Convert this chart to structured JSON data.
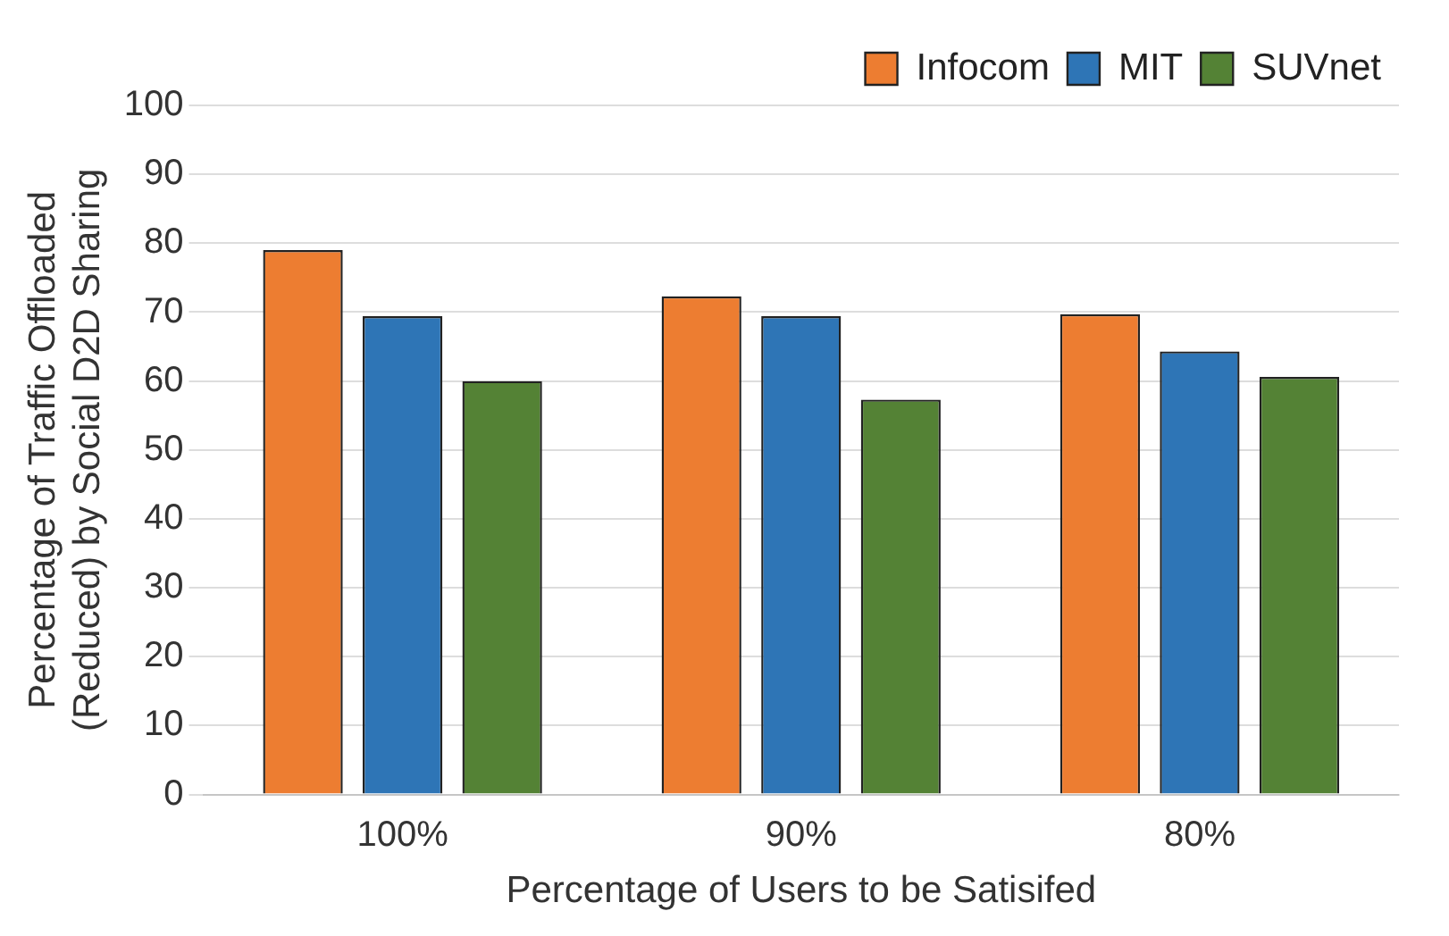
{
  "chart_data": {
    "type": "bar",
    "xlabel": "Percentage of Users to be Satisifed",
    "ylabel": "Percentage of Traffic Offloaded\n(Reduced) by Social D2D Sharing",
    "categories": [
      "100%",
      "90%",
      "80%"
    ],
    "series": [
      {
        "name": "Infocom",
        "color": "#ed7d31",
        "values": [
          79,
          72.3,
          69.7
        ]
      },
      {
        "name": "MIT",
        "color": "#2e75b6",
        "values": [
          69.4,
          69.4,
          64.3
        ]
      },
      {
        "name": "SUVnet",
        "color": "#548235",
        "values": [
          60,
          57.3,
          60.6
        ]
      }
    ],
    "ylim": [
      0,
      100
    ],
    "yticks": [
      0,
      10,
      20,
      30,
      40,
      50,
      60,
      70,
      80,
      90,
      100
    ],
    "grid": "y",
    "legend": "top right"
  }
}
